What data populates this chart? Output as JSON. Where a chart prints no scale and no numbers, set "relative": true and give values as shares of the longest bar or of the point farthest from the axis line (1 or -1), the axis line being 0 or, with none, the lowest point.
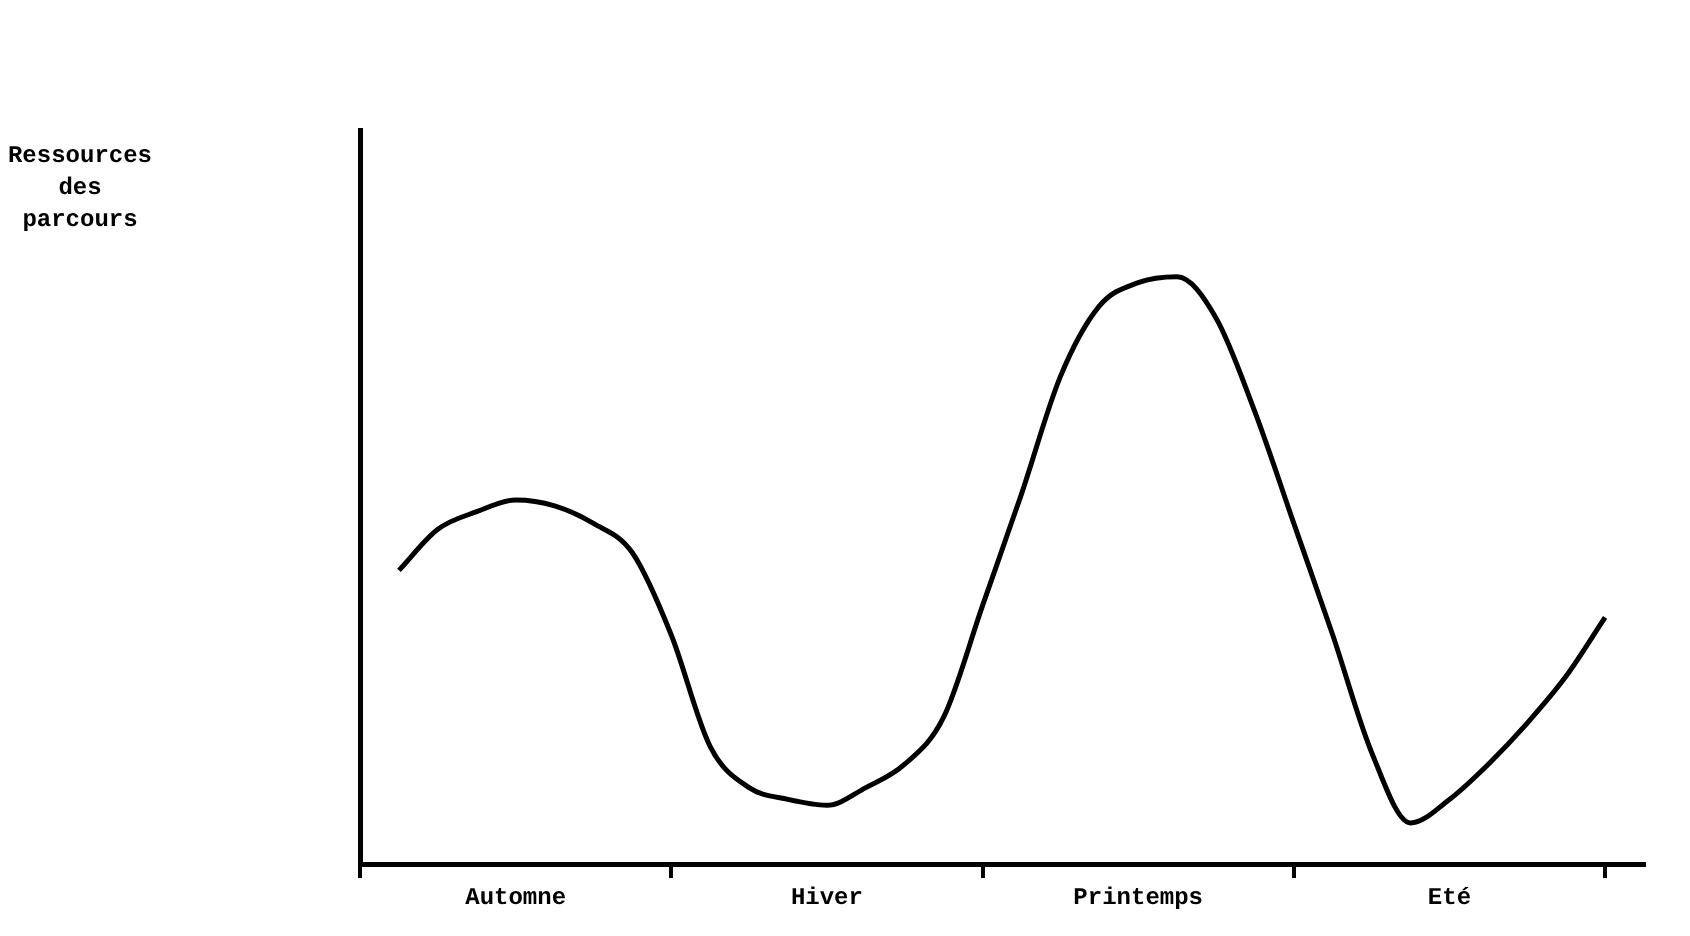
{
  "chart_data": {
    "type": "line",
    "annotations": [
      "Ressources des parcours"
    ],
    "relative": true,
    "color": "#000000",
    "marker": "none",
    "grid": false,
    "legend": false,
    "categories": [
      null,
      null,
      null,
      null,
      "Automne",
      null,
      null,
      null,
      null,
      null,
      null,
      null,
      "Hiver",
      null,
      null,
      null,
      null,
      null,
      null,
      null,
      "Printemps",
      null,
      null,
      null,
      null,
      null,
      null,
      null,
      "Eté",
      null,
      null,
      null,
      null,
      null
    ],
    "values": [
      null,
      0.5,
      0.57,
      0.6,
      0.62,
      0.61,
      0.58,
      0.53,
      0.39,
      0.2,
      0.13,
      0.11,
      0.1,
      0.13,
      0.17,
      0.25,
      0.44,
      0.63,
      0.83,
      0.95,
      0.99,
      1.0,
      0.93,
      0.77,
      0.58,
      0.39,
      0.19,
      0.07,
      0.11,
      0.17,
      0.24,
      0.32,
      0.42,
      null
    ]
  }
}
